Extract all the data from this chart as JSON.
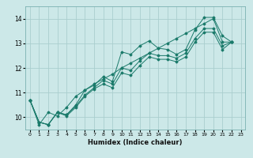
{
  "title": "",
  "xlabel": "Humidex (Indice chaleur)",
  "bg_color": "#cce8e8",
  "grid_color": "#aacece",
  "line_color": "#1a7a6a",
  "xlim": [
    -0.5,
    23.5
  ],
  "ylim": [
    9.5,
    14.5
  ],
  "xticks": [
    0,
    1,
    2,
    3,
    4,
    5,
    6,
    7,
    8,
    9,
    10,
    11,
    12,
    13,
    14,
    15,
    16,
    17,
    18,
    19,
    20,
    21,
    22,
    23
  ],
  "yticks": [
    10,
    11,
    12,
    13,
    14
  ],
  "series": [
    [
      10.7,
      9.8,
      9.7,
      10.2,
      10.1,
      10.5,
      11.1,
      11.3,
      11.65,
      11.45,
      12.65,
      12.55,
      12.9,
      13.1,
      12.8,
      12.75,
      12.55,
      12.75,
      13.55,
      14.05,
      14.05,
      13.3,
      13.05
    ],
    [
      10.7,
      9.8,
      9.7,
      10.2,
      10.1,
      10.45,
      10.9,
      11.2,
      11.5,
      11.35,
      12.0,
      11.9,
      12.3,
      12.6,
      12.5,
      12.5,
      12.4,
      12.6,
      13.2,
      13.6,
      13.6,
      12.9,
      13.05
    ],
    [
      10.7,
      9.8,
      9.7,
      10.2,
      10.05,
      10.4,
      10.85,
      11.15,
      11.35,
      11.2,
      11.8,
      11.7,
      12.1,
      12.45,
      12.35,
      12.35,
      12.25,
      12.45,
      13.05,
      13.45,
      13.45,
      12.75,
      13.05
    ],
    [
      10.7,
      9.7,
      10.2,
      10.05,
      10.4,
      10.85,
      11.1,
      11.35,
      11.55,
      11.75,
      12.0,
      12.2,
      12.4,
      12.6,
      12.8,
      13.0,
      13.2,
      13.4,
      13.6,
      13.8,
      14.0,
      13.05,
      13.05
    ]
  ]
}
